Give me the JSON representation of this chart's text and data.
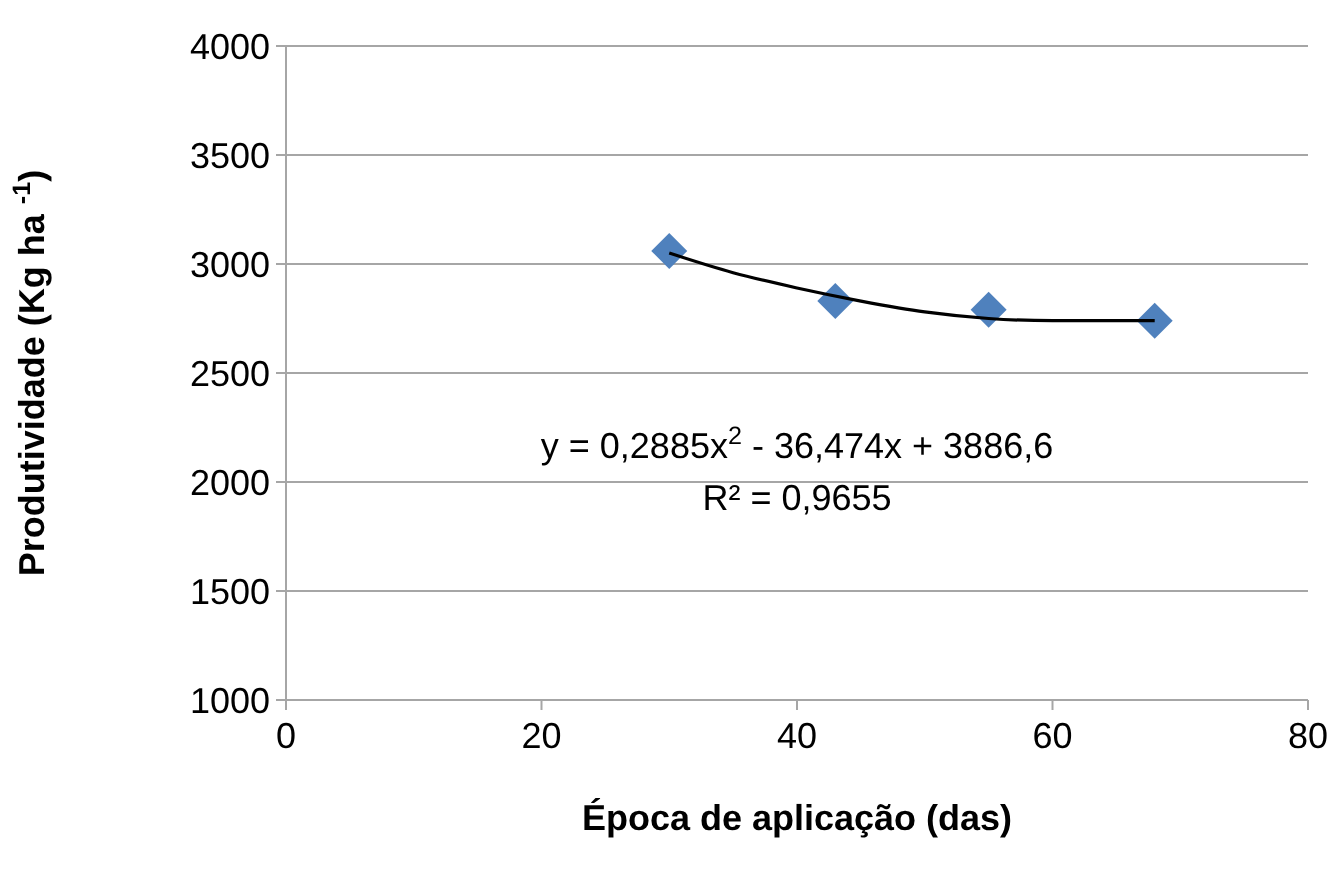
{
  "chart_data": {
    "type": "scatter",
    "xlabel": "Época de aplicação (das)",
    "ylabel": "Produtividade (Kg ha $^{-1}$)",
    "xlim": [
      0,
      80
    ],
    "xticks": [
      0,
      20,
      40,
      60,
      80
    ],
    "ylim": [
      1000,
      4000
    ],
    "yticks": [
      1000,
      1500,
      2000,
      2500,
      3000,
      3500,
      4000
    ],
    "grid": "y",
    "x": [
      30,
      43,
      55,
      68
    ],
    "series": [
      {
        "color": "#4f81bd",
        "marker": "diamond",
        "values": [
          3060,
          2830,
          2790,
          2740
        ]
      },
      {
        "type": "line",
        "color": "#000000",
        "marker": "none",
        "line_style": "solid",
        "x": [
          30,
          35,
          40,
          45,
          50,
          55,
          60,
          65,
          68
        ],
        "values": [
          3050,
          2960,
          2890,
          2830,
          2780,
          2750,
          2740,
          2740,
          2740
        ]
      }
    ],
    "annotations": [
      "y = 0,2885x$^{2}$ - 36,474x + 3886,6",
      "R² = 0,9655"
    ]
  }
}
